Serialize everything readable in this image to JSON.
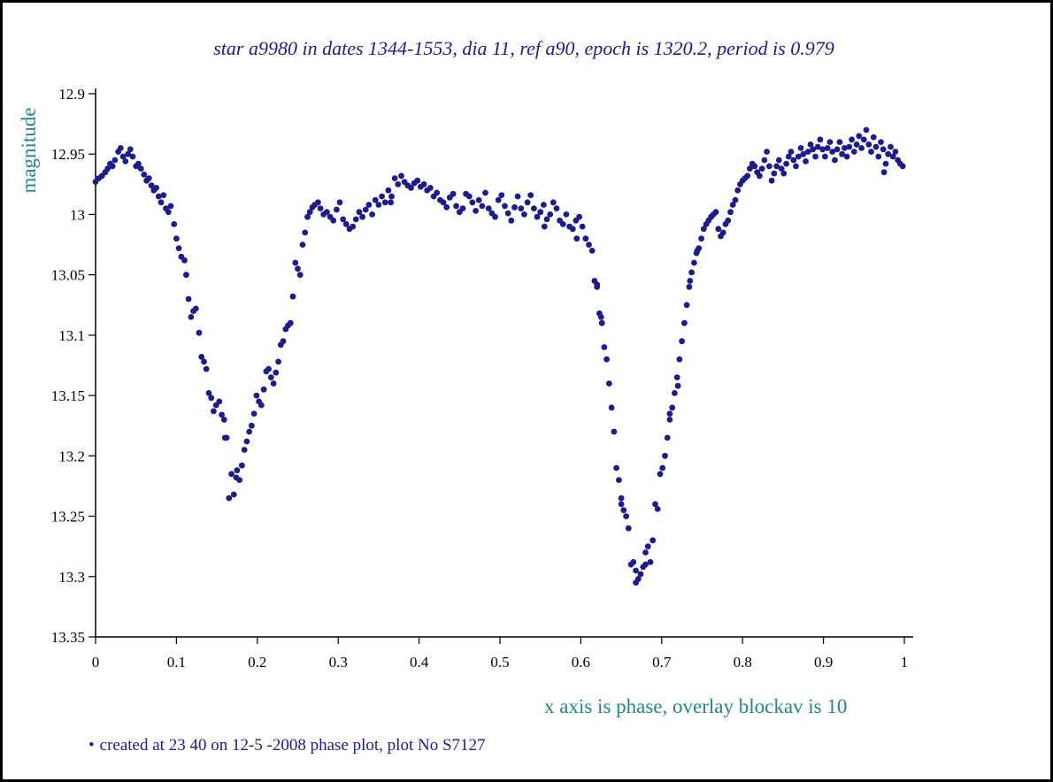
{
  "chart_data": {
    "type": "scatter",
    "title": "star a9980 in dates 1344-1553, dia 11, ref a90, epoch is 1320.2, period is 0.979",
    "xlabel": "x axis is phase, overlay blockav is 10",
    "ylabel": "magnitude",
    "xlim": [
      0,
      1
    ],
    "ylim": [
      12.9,
      13.35
    ],
    "y_inverted": true,
    "grid": false,
    "x_ticks": [
      "0",
      "0.1",
      "0.2",
      "0.3",
      "0.4",
      "0.5",
      "0.6",
      "0.7",
      "0.8",
      "0.9",
      "1"
    ],
    "y_ticks": [
      "12.9",
      "12.95",
      "13",
      "13.05",
      "13.1",
      "13.15",
      "13.2",
      "13.25",
      "13.3",
      "13.35"
    ],
    "marker_color": "#1c1c8c",
    "points": [
      [
        0.0,
        12.973
      ],
      [
        0.004,
        12.97
      ],
      [
        0.008,
        12.968
      ],
      [
        0.012,
        12.965
      ],
      [
        0.015,
        12.962
      ],
      [
        0.018,
        12.958
      ],
      [
        0.021,
        12.96
      ],
      [
        0.024,
        12.955
      ],
      [
        0.028,
        12.948
      ],
      [
        0.031,
        12.945
      ],
      [
        0.034,
        12.952
      ],
      [
        0.037,
        12.956
      ],
      [
        0.04,
        12.95
      ],
      [
        0.043,
        12.946
      ],
      [
        0.046,
        12.952
      ],
      [
        0.05,
        12.96
      ],
      [
        0.053,
        12.958
      ],
      [
        0.056,
        12.962
      ],
      [
        0.06,
        12.967
      ],
      [
        0.063,
        12.972
      ],
      [
        0.066,
        12.97
      ],
      [
        0.069,
        12.976
      ],
      [
        0.072,
        12.98
      ],
      [
        0.075,
        12.978
      ],
      [
        0.078,
        12.985
      ],
      [
        0.081,
        12.99
      ],
      [
        0.084,
        12.984
      ],
      [
        0.087,
        12.995
      ],
      [
        0.09,
        12.998
      ],
      [
        0.093,
        12.993
      ],
      [
        0.097,
        13.008
      ],
      [
        0.1,
        13.02
      ],
      [
        0.103,
        13.028
      ],
      [
        0.106,
        13.035
      ],
      [
        0.11,
        13.038
      ],
      [
        0.112,
        13.05
      ],
      [
        0.115,
        13.07
      ],
      [
        0.118,
        13.085
      ],
      [
        0.121,
        13.08
      ],
      [
        0.124,
        13.078
      ],
      [
        0.128,
        13.098
      ],
      [
        0.131,
        13.118
      ],
      [
        0.134,
        13.122
      ],
      [
        0.137,
        13.128
      ],
      [
        0.14,
        13.148
      ],
      [
        0.143,
        13.152
      ],
      [
        0.146,
        13.163
      ],
      [
        0.149,
        13.158
      ],
      [
        0.153,
        13.155
      ],
      [
        0.156,
        13.166
      ],
      [
        0.159,
        13.17
      ],
      [
        0.162,
        13.185
      ],
      [
        0.165,
        13.235
      ],
      [
        0.168,
        13.215
      ],
      [
        0.171,
        13.232
      ],
      [
        0.175,
        13.212
      ],
      [
        0.178,
        13.22
      ],
      [
        0.181,
        13.208
      ],
      [
        0.184,
        13.195
      ],
      [
        0.187,
        13.188
      ],
      [
        0.19,
        13.18
      ],
      [
        0.193,
        13.175
      ],
      [
        0.196,
        13.165
      ],
      [
        0.199,
        13.15
      ],
      [
        0.202,
        13.155
      ],
      [
        0.205,
        13.158
      ],
      [
        0.208,
        13.145
      ],
      [
        0.211,
        13.13
      ],
      [
        0.214,
        13.128
      ],
      [
        0.217,
        13.135
      ],
      [
        0.22,
        13.14
      ],
      [
        0.223,
        13.131
      ],
      [
        0.226,
        13.122
      ],
      [
        0.229,
        13.108
      ],
      [
        0.232,
        13.105
      ],
      [
        0.235,
        13.095
      ],
      [
        0.238,
        13.092
      ],
      [
        0.241,
        13.09
      ],
      [
        0.244,
        13.068
      ],
      [
        0.247,
        13.04
      ],
      [
        0.25,
        13.045
      ],
      [
        0.253,
        13.05
      ],
      [
        0.256,
        13.025
      ],
      [
        0.259,
        13.015
      ],
      [
        0.262,
        13.002
      ],
      [
        0.265,
        12.998
      ],
      [
        0.268,
        12.994
      ],
      [
        0.271,
        12.992
      ],
      [
        0.275,
        12.99
      ],
      [
        0.278,
        12.995
      ],
      [
        0.282,
        13.0
      ],
      [
        0.286,
        12.998
      ],
      [
        0.29,
        13.002
      ],
      [
        0.294,
        13.005
      ],
      [
        0.298,
        12.996
      ],
      [
        0.302,
        12.99
      ],
      [
        0.306,
        13.004
      ],
      [
        0.31,
        13.008
      ],
      [
        0.314,
        13.012
      ],
      [
        0.318,
        13.01
      ],
      [
        0.322,
        13.004
      ],
      [
        0.326,
        12.998
      ],
      [
        0.33,
        13.002
      ],
      [
        0.334,
        12.996
      ],
      [
        0.338,
        12.992
      ],
      [
        0.342,
        13.0
      ],
      [
        0.346,
        12.988
      ],
      [
        0.35,
        12.992
      ],
      [
        0.354,
        12.985
      ],
      [
        0.358,
        12.99
      ],
      [
        0.362,
        12.98
      ],
      [
        0.366,
        12.985
      ],
      [
        0.37,
        12.97
      ],
      [
        0.374,
        12.975
      ],
      [
        0.378,
        12.968
      ],
      [
        0.382,
        12.973
      ],
      [
        0.386,
        12.976
      ],
      [
        0.39,
        12.978
      ],
      [
        0.394,
        12.974
      ],
      [
        0.398,
        12.972
      ],
      [
        0.402,
        12.977
      ],
      [
        0.406,
        12.975
      ],
      [
        0.41,
        12.98
      ],
      [
        0.414,
        12.978
      ],
      [
        0.418,
        12.985
      ],
      [
        0.422,
        12.982
      ],
      [
        0.426,
        12.988
      ],
      [
        0.43,
        12.99
      ],
      [
        0.434,
        12.994
      ],
      [
        0.438,
        12.986
      ],
      [
        0.442,
        12.983
      ],
      [
        0.446,
        12.993
      ],
      [
        0.45,
        12.998
      ],
      [
        0.454,
        12.995
      ],
      [
        0.458,
        12.983
      ],
      [
        0.462,
        12.985
      ],
      [
        0.466,
        12.99
      ],
      [
        0.47,
        12.997
      ],
      [
        0.474,
        12.988
      ],
      [
        0.478,
        12.993
      ],
      [
        0.482,
        12.982
      ],
      [
        0.486,
        12.995
      ],
      [
        0.49,
        12.999
      ],
      [
        0.494,
        13.002
      ],
      [
        0.498,
        12.988
      ],
      [
        0.502,
        12.984
      ],
      [
        0.506,
        12.993
      ],
      [
        0.51,
        12.999
      ],
      [
        0.514,
        13.005
      ],
      [
        0.518,
        12.994
      ],
      [
        0.522,
        12.985
      ],
      [
        0.526,
        12.995
      ],
      [
        0.53,
        13.0
      ],
      [
        0.534,
        12.99
      ],
      [
        0.538,
        12.984
      ],
      [
        0.542,
        12.995
      ],
      [
        0.546,
        13.002
      ],
      [
        0.55,
        12.998
      ],
      [
        0.554,
        12.992
      ],
      [
        0.558,
        13.004
      ],
      [
        0.562,
        13.0
      ],
      [
        0.566,
        12.99
      ],
      [
        0.57,
        12.995
      ],
      [
        0.574,
        13.005
      ],
      [
        0.578,
        13.008
      ],
      [
        0.582,
        13.0
      ],
      [
        0.586,
        13.01
      ],
      [
        0.59,
        13.012
      ],
      [
        0.594,
        13.005
      ],
      [
        0.598,
        13.002
      ],
      [
        0.602,
        13.01
      ],
      [
        0.606,
        13.02
      ],
      [
        0.61,
        13.025
      ],
      [
        0.614,
        13.03
      ],
      [
        0.617,
        13.055
      ],
      [
        0.62,
        13.06
      ],
      [
        0.623,
        13.082
      ],
      [
        0.626,
        13.09
      ],
      [
        0.629,
        13.11
      ],
      [
        0.632,
        13.12
      ],
      [
        0.635,
        13.14
      ],
      [
        0.638,
        13.16
      ],
      [
        0.641,
        13.18
      ],
      [
        0.644,
        13.21
      ],
      [
        0.647,
        13.22
      ],
      [
        0.65,
        13.24
      ],
      [
        0.653,
        13.245
      ],
      [
        0.656,
        13.25
      ],
      [
        0.659,
        13.26
      ],
      [
        0.662,
        13.29
      ],
      [
        0.665,
        13.288
      ],
      [
        0.668,
        13.295
      ],
      [
        0.671,
        13.302
      ],
      [
        0.674,
        13.298
      ],
      [
        0.677,
        13.292
      ],
      [
        0.68,
        13.28
      ],
      [
        0.683,
        13.275
      ],
      [
        0.686,
        13.288
      ],
      [
        0.689,
        13.27
      ],
      [
        0.692,
        13.24
      ],
      [
        0.695,
        13.244
      ],
      [
        0.698,
        13.215
      ],
      [
        0.701,
        13.21
      ],
      [
        0.704,
        13.2
      ],
      [
        0.707,
        13.185
      ],
      [
        0.71,
        13.17
      ],
      [
        0.713,
        13.16
      ],
      [
        0.716,
        13.148
      ],
      [
        0.719,
        13.135
      ],
      [
        0.722,
        13.12
      ],
      [
        0.725,
        13.105
      ],
      [
        0.728,
        13.09
      ],
      [
        0.731,
        13.075
      ],
      [
        0.734,
        13.06
      ],
      [
        0.737,
        13.048
      ],
      [
        0.74,
        13.04
      ],
      [
        0.743,
        13.032
      ],
      [
        0.746,
        13.028
      ],
      [
        0.749,
        13.02
      ],
      [
        0.752,
        13.012
      ],
      [
        0.755,
        13.008
      ],
      [
        0.758,
        13.005
      ],
      [
        0.761,
        13.002
      ],
      [
        0.764,
        13.0
      ],
      [
        0.767,
        12.998
      ],
      [
        0.77,
        13.012
      ],
      [
        0.773,
        13.018
      ],
      [
        0.776,
        13.015
      ],
      [
        0.779,
        13.008
      ],
      [
        0.782,
        13.005
      ],
      [
        0.785,
        12.998
      ],
      [
        0.788,
        12.992
      ],
      [
        0.791,
        12.988
      ],
      [
        0.794,
        12.98
      ],
      [
        0.797,
        12.975
      ],
      [
        0.8,
        12.972
      ],
      [
        0.803,
        12.97
      ],
      [
        0.806,
        12.968
      ],
      [
        0.809,
        12.962
      ],
      [
        0.812,
        12.958
      ],
      [
        0.815,
        12.96
      ],
      [
        0.818,
        12.965
      ],
      [
        0.821,
        12.968
      ],
      [
        0.824,
        12.962
      ],
      [
        0.827,
        12.955
      ],
      [
        0.83,
        12.948
      ],
      [
        0.833,
        12.96
      ],
      [
        0.836,
        12.972
      ],
      [
        0.839,
        12.966
      ],
      [
        0.842,
        12.96
      ],
      [
        0.845,
        12.955
      ],
      [
        0.848,
        12.962
      ],
      [
        0.851,
        12.966
      ],
      [
        0.854,
        12.958
      ],
      [
        0.857,
        12.952
      ],
      [
        0.86,
        12.948
      ],
      [
        0.863,
        12.955
      ],
      [
        0.866,
        12.96
      ],
      [
        0.869,
        12.952
      ],
      [
        0.872,
        12.945
      ],
      [
        0.875,
        12.95
      ],
      [
        0.878,
        12.956
      ],
      [
        0.881,
        12.948
      ],
      [
        0.884,
        12.942
      ],
      [
        0.887,
        12.946
      ],
      [
        0.89,
        12.952
      ],
      [
        0.893,
        12.944
      ],
      [
        0.896,
        12.938
      ],
      [
        0.899,
        12.946
      ],
      [
        0.902,
        12.952
      ],
      [
        0.905,
        12.945
      ],
      [
        0.908,
        12.94
      ],
      [
        0.911,
        12.948
      ],
      [
        0.914,
        12.955
      ],
      [
        0.917,
        12.946
      ],
      [
        0.92,
        12.94
      ],
      [
        0.923,
        12.95
      ],
      [
        0.926,
        12.945
      ],
      [
        0.929,
        12.952
      ],
      [
        0.932,
        12.944
      ],
      [
        0.935,
        12.938
      ],
      [
        0.938,
        12.948
      ],
      [
        0.941,
        12.942
      ],
      [
        0.944,
        12.935
      ],
      [
        0.947,
        12.945
      ],
      [
        0.95,
        12.938
      ],
      [
        0.953,
        12.93
      ],
      [
        0.956,
        12.942
      ],
      [
        0.959,
        12.948
      ],
      [
        0.962,
        12.936
      ],
      [
        0.965,
        12.944
      ],
      [
        0.968,
        12.952
      ],
      [
        0.971,
        12.94
      ],
      [
        0.974,
        12.946
      ],
      [
        0.977,
        12.958
      ],
      [
        0.98,
        12.95
      ],
      [
        0.983,
        12.944
      ],
      [
        0.986,
        12.952
      ],
      [
        0.989,
        12.948
      ],
      [
        0.992,
        12.955
      ],
      [
        0.995,
        12.958
      ],
      [
        0.998,
        12.96
      ],
      [
        0.16,
        13.185
      ],
      [
        0.174,
        13.218
      ],
      [
        0.668,
        13.305
      ],
      [
        0.68,
        13.29
      ],
      [
        0.65,
        13.235
      ],
      [
        0.71,
        13.165
      ],
      [
        0.72,
        13.142
      ],
      [
        0.735,
        13.055
      ],
      [
        0.744,
        13.03
      ],
      [
        0.975,
        12.965
      ],
      [
        0.365,
        12.99
      ],
      [
        0.555,
        13.01
      ],
      [
        0.595,
        13.02
      ],
      [
        0.62,
        13.058
      ],
      [
        0.625,
        13.085
      ]
    ]
  },
  "footnote": {
    "bullet": "•",
    "text": "created at 23 40 on 12-5 -2008 phase plot, plot No S7127"
  }
}
